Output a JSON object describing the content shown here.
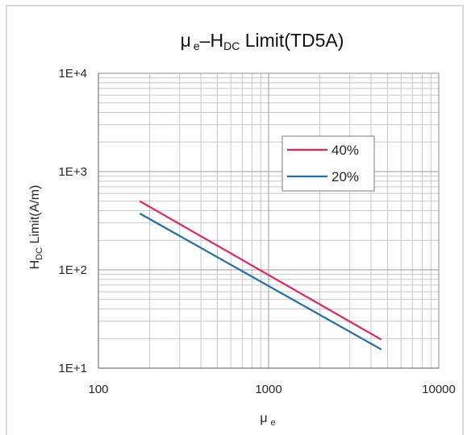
{
  "chart_data": {
    "type": "line",
    "title_main": "μ",
    "title_sub": "e",
    "title_dash": "–H",
    "title_sub2": "DC",
    "title_rest": " Limit(TD5A)",
    "xlabel_main": "μ",
    "xlabel_sub": "e",
    "ylabel_main": "H",
    "ylabel_sub": "DC",
    "ylabel_rest": " Limit(A/m)",
    "x_scale": "log",
    "y_scale": "log",
    "xlim": [
      100,
      10000
    ],
    "ylim": [
      10,
      10000
    ],
    "x_ticks": [
      {
        "value": 100,
        "label": "100"
      },
      {
        "value": 1000,
        "label": "1000"
      },
      {
        "value": 10000,
        "label": "10000"
      }
    ],
    "y_ticks": [
      {
        "value": 10,
        "label": "1E+1"
      },
      {
        "value": 100,
        "label": "1E+2"
      },
      {
        "value": 1000,
        "label": "1E+3"
      },
      {
        "value": 10000,
        "label": "1E+4"
      }
    ],
    "grid": true,
    "legend_position": "upper-right",
    "series": [
      {
        "name": "40%",
        "color": "#e8205c",
        "x": [
          175,
          4600
        ],
        "y": [
          500,
          19.5
        ]
      },
      {
        "name": "20%",
        "color": "#1f6fa8",
        "x": [
          175,
          4600
        ],
        "y": [
          375,
          15.5
        ]
      }
    ]
  }
}
